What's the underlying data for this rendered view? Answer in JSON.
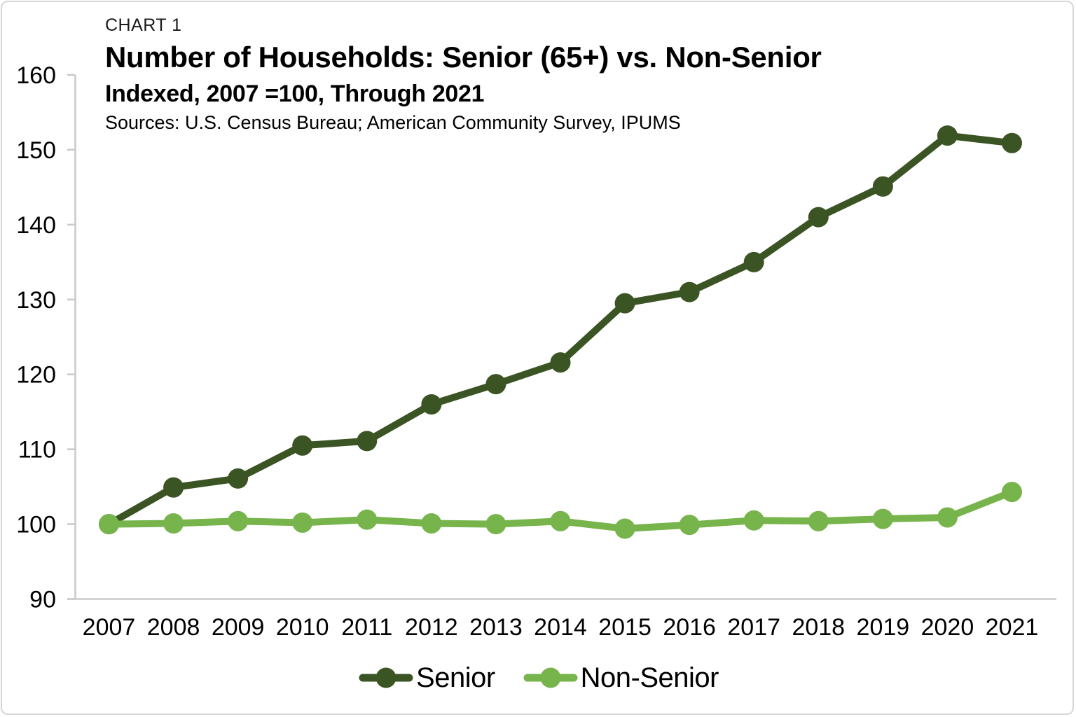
{
  "header": {
    "kicker": "CHART 1",
    "title": "Number of Households: Senior (65+) vs. Non-Senior",
    "subtitle": "Indexed, 2007 =100, Through 2021",
    "sources": "Sources: U.S. Census Bureau; American Community Survey, IPUMS"
  },
  "colors": {
    "senior": "#3B5424",
    "non_senior": "#77B44C",
    "axis": "#C9C9C9",
    "border": "#D7D7D7",
    "text": "#000000"
  },
  "chart_data": {
    "type": "line",
    "title": "Number of Households: Senior (65+) vs. Non-Senior",
    "subtitle": "Indexed, 2007 =100, Through 2021",
    "xlabel": "",
    "ylabel": "",
    "x": [
      2007,
      2008,
      2009,
      2010,
      2011,
      2012,
      2013,
      2014,
      2015,
      2016,
      2017,
      2018,
      2019,
      2020,
      2021
    ],
    "series": [
      {
        "name": "Senior",
        "color": "#3B5424",
        "values": [
          100.0,
          104.9,
          106.1,
          110.5,
          111.1,
          116.0,
          118.7,
          121.6,
          129.5,
          131.0,
          135.0,
          141.0,
          145.1,
          151.9,
          150.9
        ]
      },
      {
        "name": "Non-Senior",
        "color": "#77B44C",
        "values": [
          100.0,
          100.1,
          100.4,
          100.2,
          100.6,
          100.1,
          100.0,
          100.4,
          99.4,
          99.9,
          100.5,
          100.4,
          100.7,
          100.9,
          104.3
        ]
      }
    ],
    "ylim": [
      90,
      160
    ],
    "yticks": [
      90,
      100,
      110,
      120,
      130,
      140,
      150,
      160
    ],
    "index_base": "2007 = 100",
    "grid": false,
    "legend_position": "bottom",
    "marker": "circle"
  },
  "legend": {
    "items": [
      {
        "label": "Senior"
      },
      {
        "label": "Non-Senior"
      }
    ]
  }
}
